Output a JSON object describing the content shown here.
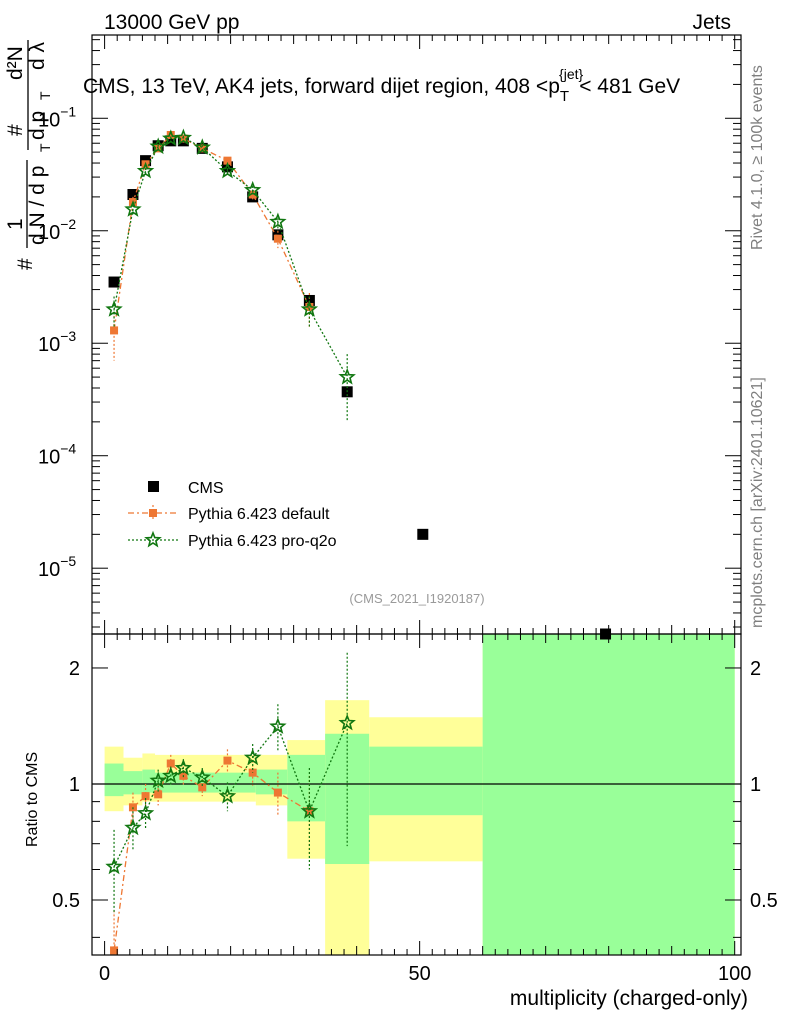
{
  "header": {
    "energy_label": "13000 GeV pp",
    "category_label": "Jets",
    "plot_title": "CMS, 13 TeV, AK4 jets, forward dijet region, 408 <p",
    "title_sub": "T",
    "title_sup": "{jet}",
    "title_tail": "< 481 GeV"
  },
  "side": {
    "rivet_label": "Rivet 4.1.0, ≥ 100k events",
    "site_label": "mcplots.cern.ch [arXiv:2401.10621]"
  },
  "analysis_ref": "(CMS_2021_I1920187)",
  "yaxis_upper": {
    "hash1": "#",
    "one": "1",
    "dN": "d N / d p",
    "T1": "T",
    "hash2": "#",
    "dpT": "d p",
    "T2": "T",
    "d2N": "d²N",
    "dlambda": "d λ",
    "ticks": [
      {
        "base": "10",
        "exp": "−1",
        "value": 0.1
      },
      {
        "base": "10",
        "exp": "−2",
        "value": 0.01
      },
      {
        "base": "10",
        "exp": "−3",
        "value": 0.001
      },
      {
        "base": "10",
        "exp": "−4",
        "value": 0.0001
      },
      {
        "base": "10",
        "exp": "−5",
        "value": 1e-05
      }
    ]
  },
  "yaxis_lower": {
    "label": "Ratio to CMS",
    "ticks": [
      {
        "label": "2",
        "value": 2
      },
      {
        "label": "1",
        "value": 1
      },
      {
        "label": "0.5",
        "value": 0.5
      }
    ]
  },
  "xaxis": {
    "label": "multiplicity (charged-only)",
    "ticks": [
      {
        "label": "0",
        "value": 0
      },
      {
        "label": "50",
        "value": 50
      },
      {
        "label": "100",
        "value": 100
      }
    ]
  },
  "legend": [
    {
      "name": "CMS",
      "marker": "square",
      "color": "#000000"
    },
    {
      "name": "Pythia 6.423 default",
      "marker": "square",
      "color": "#ee7733"
    },
    {
      "name": "Pythia 6.423 pro-q2o",
      "marker": "star",
      "color": "#117711"
    }
  ],
  "chart_data": {
    "type": "scatter",
    "x_range": [
      -2,
      101
    ],
    "upper": {
      "yscale": "log",
      "y_range": [
        2.6e-06,
        0.55
      ],
      "series": [
        {
          "name": "CMS",
          "x": [
            1.5,
            4.5,
            6.5,
            8.5,
            10.5,
            12.5,
            15.5,
            19.5,
            23.5,
            27.5,
            32.5,
            38.5,
            50.5,
            79.5
          ],
          "y": [
            0.0035,
            0.021,
            0.042,
            0.057,
            0.063,
            0.063,
            0.054,
            0.037,
            0.02,
            0.0092,
            0.0024,
            0.00037,
            2e-05,
            2.6e-06
          ],
          "yerr": [
            0,
            0,
            0,
            0,
            0,
            0,
            0,
            0,
            0,
            0,
            0,
            0,
            0,
            0
          ]
        },
        {
          "name": "Pythia 6.423 default",
          "x": [
            1.5,
            4.5,
            6.5,
            8.5,
            10.5,
            12.5,
            15.5,
            19.5,
            23.5,
            27.5,
            32.5
          ],
          "y": [
            0.0013,
            0.018,
            0.039,
            0.054,
            0.071,
            0.066,
            0.054,
            0.042,
            0.021,
            0.0085,
            0.0021
          ],
          "yerr": [
            0.0006,
            0.002,
            0.003,
            0.003,
            0.004,
            0.004,
            0.003,
            0.003,
            0.002,
            0.0015,
            0.0007
          ]
        },
        {
          "name": "Pythia 6.423 pro-q2o",
          "x": [
            1.5,
            4.5,
            6.5,
            8.5,
            10.5,
            12.5,
            15.5,
            19.5,
            23.5,
            27.5,
            32.5,
            38.5
          ],
          "y": [
            0.002,
            0.0155,
            0.034,
            0.056,
            0.066,
            0.067,
            0.055,
            0.034,
            0.023,
            0.012,
            0.002,
            0.0005
          ],
          "yerr": [
            0.0006,
            0.0015,
            0.002,
            0.003,
            0.003,
            0.003,
            0.003,
            0.002,
            0.002,
            0.002,
            0.0006,
            0.0003
          ]
        }
      ]
    },
    "lower": {
      "ylabel": "Ratio to CMS",
      "yscale": "log",
      "y_range": [
        0.36,
        2.45
      ],
      "reference_line": 1,
      "bands": [
        {
          "x0": 0,
          "x1": 3,
          "yellow": [
            0.85,
            1.25
          ],
          "green": [
            0.93,
            1.13
          ]
        },
        {
          "x0": 3,
          "x1": 6,
          "yellow": [
            0.88,
            1.17
          ],
          "green": [
            0.94,
            1.08
          ]
        },
        {
          "x0": 6,
          "x1": 8,
          "yellow": [
            0.9,
            1.2
          ],
          "green": [
            0.95,
            1.09
          ]
        },
        {
          "x0": 8,
          "x1": 24,
          "yellow": [
            0.9,
            1.19
          ],
          "green": [
            0.95,
            1.07
          ]
        },
        {
          "x0": 24,
          "x1": 29,
          "yellow": [
            0.88,
            1.19
          ],
          "green": [
            0.94,
            1.09
          ]
        },
        {
          "x0": 29,
          "x1": 35,
          "yellow": [
            0.64,
            1.3
          ],
          "green": [
            0.8,
            1.19
          ]
        },
        {
          "x0": 35,
          "x1": 42,
          "yellow": [
            0.2,
            1.65
          ],
          "green": [
            0.62,
            1.35
          ]
        },
        {
          "x0": 42,
          "x1": 60,
          "yellow": [
            0.63,
            1.49
          ],
          "green": [
            0.83,
            1.25
          ]
        },
        {
          "x0": 60,
          "x1": 100,
          "yellow": [
            0.2,
            3.0
          ],
          "green": [
            0.2,
            3.0
          ]
        }
      ],
      "series": [
        {
          "name": "Pythia 6.423 default",
          "x": [
            1.5,
            4.5,
            6.5,
            8.5,
            10.5,
            12.5,
            15.5,
            19.5,
            23.5,
            27.5,
            32.5
          ],
          "y": [
            0.37,
            0.87,
            0.93,
            0.94,
            1.13,
            1.05,
            0.98,
            1.15,
            1.07,
            0.95,
            0.85
          ],
          "yerr": [
            0.1,
            0.08,
            0.07,
            0.06,
            0.06,
            0.06,
            0.05,
            0.08,
            0.08,
            0.12,
            0.2
          ]
        },
        {
          "name": "Pythia 6.423 pro-q2o",
          "x": [
            1.5,
            4.5,
            6.5,
            8.5,
            10.5,
            12.5,
            15.5,
            19.5,
            23.5,
            27.5,
            32.5,
            38.5
          ],
          "y": [
            0.61,
            0.77,
            0.84,
            1.02,
            1.05,
            1.1,
            1.04,
            0.93,
            1.17,
            1.41,
            0.85,
            1.44
          ],
          "yerr": [
            0.15,
            0.1,
            0.08,
            0.07,
            0.06,
            0.06,
            0.06,
            0.08,
            0.1,
            0.2,
            0.25,
            0.75
          ]
        }
      ]
    }
  }
}
